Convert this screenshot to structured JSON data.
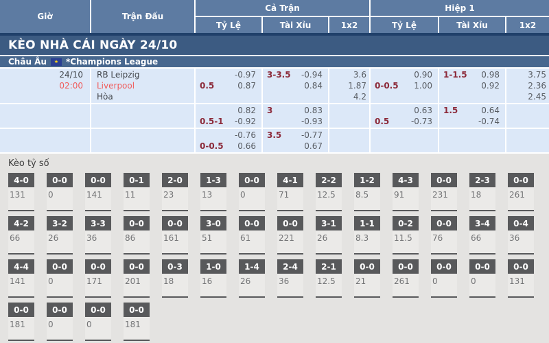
{
  "header": {
    "time": "Giờ",
    "match": "Trận Đấu",
    "full_match": "Cả Trận",
    "first_half": "Hiệp 1",
    "sub": {
      "handicap": "Tỷ Lệ",
      "over_under": "Tài Xỉu",
      "one_x_two": "1x2"
    }
  },
  "banner": {
    "title": "KÈO NHÀ CÁI NGÀY 24/10"
  },
  "league": {
    "region": "Châu Âu",
    "flag_icon": "eu-flag",
    "name": "*Champions League"
  },
  "match": {
    "date": "24/10",
    "time": "02:00",
    "home": "RB Leipzig",
    "away": "Liverpool",
    "draw_label": "Hòa"
  },
  "odds_rows": [
    {
      "ft_hcp": {
        "label": "0.5",
        "pos": "bottom",
        "top": "-0.97",
        "bottom": "0.87"
      },
      "ft_ou": {
        "label": "3-3.5",
        "pos": "top",
        "top": "-0.94",
        "bottom": "0.84"
      },
      "ft_1x2": [
        "3.6",
        "1.87",
        "4.2"
      ],
      "h1_hcp": {
        "label": "0-0.5",
        "pos": "bottom",
        "top": "0.90",
        "bottom": "1.00"
      },
      "h1_ou": {
        "label": "1-1.5",
        "pos": "top",
        "top": "0.98",
        "bottom": "0.92"
      },
      "h1_1x2": [
        "3.75",
        "2.36",
        "2.45"
      ]
    },
    {
      "ft_hcp": {
        "label": "0.5-1",
        "pos": "bottom",
        "top": "0.82",
        "bottom": "-0.92"
      },
      "ft_ou": {
        "label": "3",
        "pos": "top",
        "top": "0.83",
        "bottom": "-0.93"
      },
      "ft_1x2": [],
      "h1_hcp": {
        "label": "0.5",
        "pos": "bottom",
        "top": "0.63",
        "bottom": "-0.73"
      },
      "h1_ou": {
        "label": "1.5",
        "pos": "top",
        "top": "0.64",
        "bottom": "-0.74"
      },
      "h1_1x2": []
    },
    {
      "ft_hcp": {
        "label": "0-0.5",
        "pos": "bottom",
        "top": "-0.76",
        "bottom": "0.66"
      },
      "ft_ou": {
        "label": "3.5",
        "pos": "top",
        "top": "-0.77",
        "bottom": "0.67"
      },
      "ft_1x2": [],
      "h1_hcp": null,
      "h1_ou": null,
      "h1_1x2": []
    }
  ],
  "score_section": {
    "title": "Kèo tỷ số",
    "rows": [
      [
        {
          "score": "4-0",
          "value": "131"
        },
        {
          "score": "0-0",
          "value": "0"
        },
        {
          "score": "0-0",
          "value": "141"
        },
        {
          "score": "0-1",
          "value": "11"
        },
        {
          "score": "2-0",
          "value": "23"
        },
        {
          "score": "1-3",
          "value": "13"
        },
        {
          "score": "0-0",
          "value": "0"
        },
        {
          "score": "4-1",
          "value": "71"
        },
        {
          "score": "2-2",
          "value": "12.5"
        },
        {
          "score": "1-2",
          "value": "8.5"
        },
        {
          "score": "4-3",
          "value": "91"
        },
        {
          "score": "0-0",
          "value": "231"
        },
        {
          "score": "2-3",
          "value": "18"
        },
        {
          "score": "0-0",
          "value": "261"
        }
      ],
      [
        {
          "score": "4-2",
          "value": "66"
        },
        {
          "score": "3-2",
          "value": "26"
        },
        {
          "score": "3-3",
          "value": "36"
        },
        {
          "score": "0-0",
          "value": "86"
        },
        {
          "score": "0-0",
          "value": "161"
        },
        {
          "score": "3-0",
          "value": "51"
        },
        {
          "score": "0-0",
          "value": "61"
        },
        {
          "score": "0-0",
          "value": "221"
        },
        {
          "score": "3-1",
          "value": "26"
        },
        {
          "score": "1-1",
          "value": "8.3"
        },
        {
          "score": "0-2",
          "value": "11.5"
        },
        {
          "score": "0-0",
          "value": "76"
        },
        {
          "score": "3-4",
          "value": "66"
        },
        {
          "score": "0-4",
          "value": "36"
        }
      ],
      [
        {
          "score": "4-4",
          "value": "141"
        },
        {
          "score": "0-0",
          "value": "0"
        },
        {
          "score": "0-0",
          "value": "171"
        },
        {
          "score": "0-0",
          "value": "201"
        },
        {
          "score": "0-3",
          "value": "18"
        },
        {
          "score": "1-0",
          "value": "16"
        },
        {
          "score": "1-4",
          "value": "26"
        },
        {
          "score": "2-4",
          "value": "36"
        },
        {
          "score": "2-1",
          "value": "12.5"
        },
        {
          "score": "0-0",
          "value": "21"
        },
        {
          "score": "0-0",
          "value": "261"
        },
        {
          "score": "0-0",
          "value": "0"
        },
        {
          "score": "0-0",
          "value": "0"
        },
        {
          "score": "0-0",
          "value": "131"
        }
      ],
      [
        {
          "score": "0-0",
          "value": "181"
        },
        {
          "score": "0-0",
          "value": "0"
        },
        {
          "score": "0-0",
          "value": "0"
        },
        {
          "score": "0-0",
          "value": "181"
        }
      ]
    ]
  },
  "colors": {
    "header_bg": "#5d7ba2",
    "divider": "#20406a",
    "banner_bg": "#3c5b82",
    "league_bg": "#47678e",
    "row_bg": "#dce8f8",
    "accent_red": "#f05c5c",
    "handicap": "#8c2a3a",
    "odds_text": "#585c62",
    "text_dark": "#43474c",
    "section_bg": "#e4e3e1",
    "card_bg": "#ebeae8",
    "score_box_bg": "#58595b",
    "score_value": "#737476"
  }
}
